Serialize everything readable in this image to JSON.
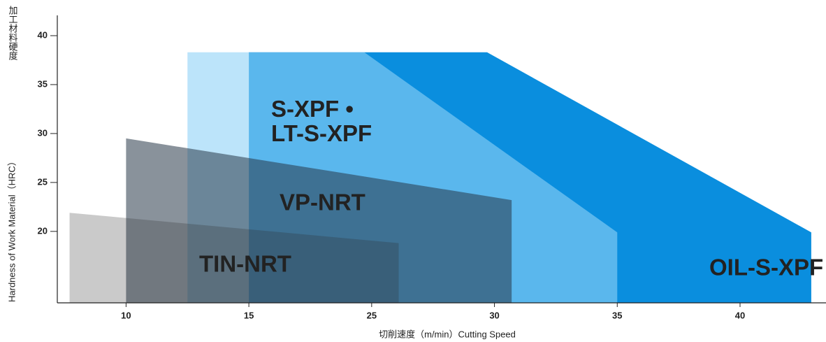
{
  "chart_data": {
    "type": "area",
    "x_label": "切削速度（m/min）Cutting Speed",
    "y_label_ja": "加工材料硬度",
    "y_label_en": "Hardness of Work Material（HRC）",
    "xlim": [
      7.2,
      43.5
    ],
    "xticks": [
      10,
      15,
      25,
      30,
      35,
      40
    ],
    "ylim": [
      12.7,
      41.5
    ],
    "yticks": [
      20,
      25,
      30,
      35,
      40
    ],
    "series": [
      {
        "name": "OIL-S-XPF",
        "color": "#0a8ede",
        "opacity": 1,
        "label_color": "#f5e614",
        "x": [
          15,
          29.7,
          42.9,
          42.9,
          15
        ],
        "values": [
          38.3,
          38.3,
          19.9,
          12.7,
          12.7
        ]
      },
      {
        "name": "S-XPF • LT-S-XPF",
        "color": "#8fd2f7",
        "opacity": 0.6,
        "label_color": "#f5e614",
        "x": [
          12.5,
          24.4,
          35,
          35,
          12.5
        ],
        "values": [
          38.3,
          38.3,
          19.9,
          12.7,
          12.7
        ]
      },
      {
        "name": "VP-NRT",
        "color": "#283848",
        "opacity": 0.55,
        "label_color": "#ffffff",
        "x": [
          10,
          30.7,
          30.7,
          10
        ],
        "values": [
          29.5,
          23.2,
          12.7,
          12.7
        ]
      },
      {
        "name": "TIN-NRT",
        "color": "#2a2a2a",
        "opacity": 0.25,
        "label_color": "#ffffff",
        "x": [
          7.7,
          26.1,
          26.1,
          7.7
        ],
        "values": [
          21.9,
          18.8,
          12.7,
          12.7
        ]
      }
    ]
  }
}
